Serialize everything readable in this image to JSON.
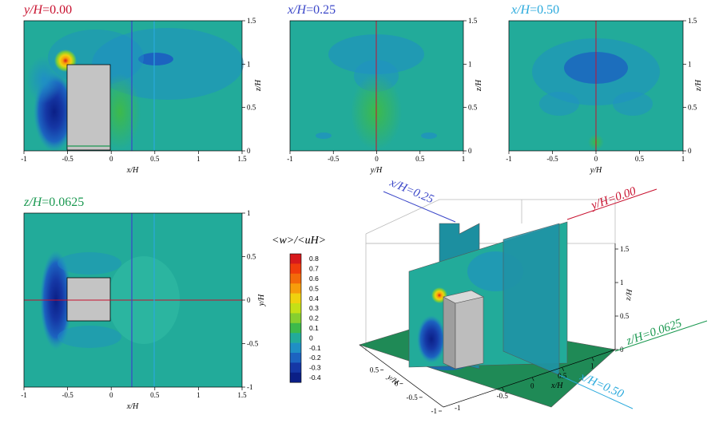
{
  "colors": {
    "red": "#c8102e",
    "blue": "#3a46c8",
    "cyan": "#29a9dc",
    "green": "#1a9850",
    "field_base": "#22ab9a",
    "field_light": "#2fb9a3",
    "block": "#c4c4c4"
  },
  "chart_data": [
    {
      "type": "heatmap",
      "title_var": "y/H",
      "title_value": "=0.00",
      "xlabel": "x/H",
      "ylabel": "z/H",
      "xlim": [
        -1,
        1.5
      ],
      "ylim": [
        0,
        1.5
      ],
      "xticks": [
        "-1",
        "-0.5",
        "0",
        "0.5",
        "1",
        "1.5"
      ],
      "yticks": [
        "0",
        "0.5",
        "1",
        "1.5"
      ]
    },
    {
      "type": "heatmap",
      "title_var": "x/H",
      "title_value": "=0.25",
      "xlabel": "y/H",
      "ylabel": "z/H",
      "xlim": [
        -1,
        1
      ],
      "ylim": [
        0,
        1.5
      ],
      "xticks": [
        "-1",
        "-0.5",
        "0",
        "0.5",
        "1"
      ],
      "yticks": [
        "0",
        "0.5",
        "1",
        "1.5"
      ]
    },
    {
      "type": "heatmap",
      "title_var": "x/H",
      "title_value": "=0.50",
      "xlabel": "y/H",
      "ylabel": "z/H",
      "xlim": [
        -1,
        1
      ],
      "ylim": [
        0,
        1.5
      ],
      "xticks": [
        "-1",
        "-0.5",
        "0",
        "0.5",
        "1"
      ],
      "yticks": [
        "0",
        "0.5",
        "1",
        "1.5"
      ]
    },
    {
      "type": "heatmap",
      "title_var": "z/H",
      "title_value": "=0.0625",
      "xlabel": "x/H",
      "ylabel": "y/H",
      "xlim": [
        -1,
        1.5
      ],
      "ylim": [
        -1,
        1
      ],
      "xticks": [
        "-1",
        "-0.5",
        "0",
        "0.5",
        "1",
        "1.5"
      ],
      "yticks": [
        "-1",
        "-0.5",
        "0",
        "0.5",
        "1"
      ]
    },
    {
      "type": "heatmap",
      "view": "3d",
      "plane_labels": [
        "x/H=0.25",
        "y/H=0.00",
        "z/H=0.0625",
        "x/H=0.50"
      ],
      "axis_labels": {
        "x": "x/H",
        "y": "y/H",
        "z": "z/H"
      },
      "x_ticks": [
        "-0.5",
        "0",
        "0.5",
        "1"
      ],
      "y_ticks": [
        "0.5",
        "0",
        "-0.5",
        "-1"
      ],
      "z_ticks": [
        "0",
        "0.5",
        "1",
        "1.5"
      ],
      "lone_tick": "-1"
    }
  ],
  "colorbar": {
    "label": "<w>/<uH>",
    "levels": [
      0.8,
      0.7,
      0.6,
      0.5,
      0.4,
      0.3,
      0.2,
      0.1,
      0,
      -0.1,
      -0.2,
      -0.3,
      -0.4
    ],
    "tick_labels": [
      "0.8",
      "0.7",
      "0.6",
      "0.5",
      "0.4",
      "0.3",
      "0.2",
      "0.1",
      "0",
      "-0.1",
      "-0.2",
      "-0.3",
      "-0.4"
    ],
    "colors": [
      "#d7191c",
      "#f03c0c",
      "#f36a0a",
      "#f79d0b",
      "#f0d20e",
      "#c4e017",
      "#86cf2f",
      "#3dba4b",
      "#22ab9a",
      "#1f8fc5",
      "#1c63c0",
      "#1537a5",
      "#0b1f86"
    ]
  }
}
